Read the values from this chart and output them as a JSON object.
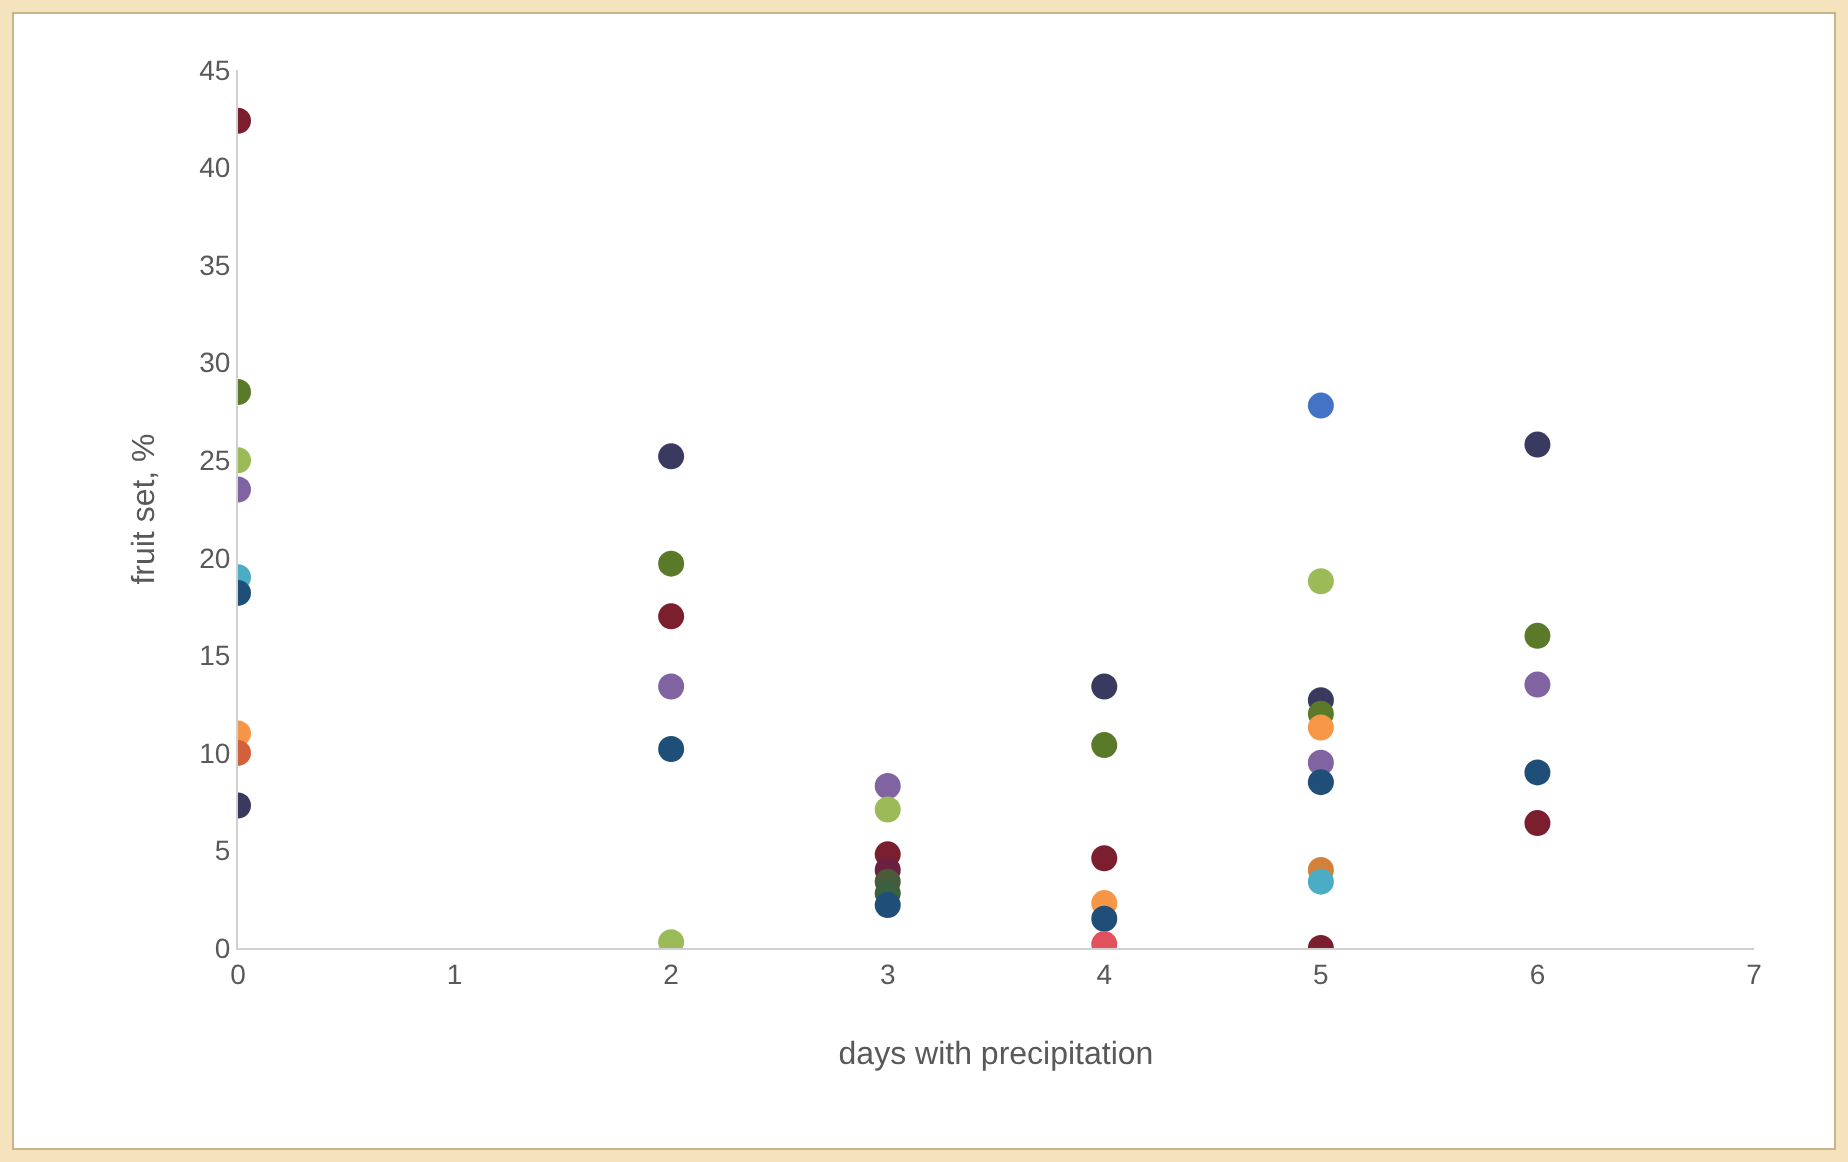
{
  "chart_data": {
    "type": "scatter",
    "xlabel": "days with precipitation",
    "ylabel": "fruit set, %",
    "x": [
      0,
      0,
      0,
      0,
      0,
      0,
      0,
      0,
      0,
      2,
      2,
      2,
      2,
      2,
      2,
      3,
      3,
      3,
      3,
      3,
      3,
      3,
      4,
      4,
      4,
      4,
      4,
      4,
      5,
      5,
      5,
      5,
      5,
      5,
      5,
      5,
      5,
      5,
      6,
      6,
      6,
      6,
      6
    ],
    "values": [
      42.4,
      28.5,
      25,
      23.5,
      19,
      18.2,
      11,
      10,
      7.3,
      25.2,
      19.7,
      17,
      13.4,
      10.2,
      0.3,
      8.3,
      7.1,
      4.8,
      4,
      3.4,
      2.8,
      2.2,
      13.4,
      10.4,
      4.6,
      2.3,
      1.5,
      0.2,
      27.8,
      18.8,
      12.7,
      12,
      11.3,
      9.5,
      8.5,
      4,
      3.4,
      0,
      25.8,
      16,
      13.5,
      9,
      6.4
    ],
    "colors": [
      "#7b1f2e",
      "#5a7a2a",
      "#9bbb59",
      "#8064a2",
      "#4bacc6",
      "#1f4e79",
      "#f79646",
      "#d2603a",
      "#3a3a60",
      "#3a3a60",
      "#5a7a2a",
      "#7b1f2e",
      "#8064a2",
      "#1f4e79",
      "#9bbb59",
      "#8064a2",
      "#9bbb59",
      "#7b1f2e",
      "#6b2040",
      "#4a5a3a",
      "#3a6040",
      "#1f4e79",
      "#3a3a60",
      "#5a7a2a",
      "#7b1f2e",
      "#f79646",
      "#1f4e79",
      "#e0505d",
      "#4472c4",
      "#9bbb59",
      "#3a3a60",
      "#5a7a2a",
      "#f79646",
      "#8064a2",
      "#1f4e79",
      "#d2803a",
      "#4bacc6",
      "#7b1f2e",
      "#3a3a60",
      "#5a7a2a",
      "#8064a2",
      "#1f4e79",
      "#7b1f2e"
    ],
    "xlim": [
      0,
      7
    ],
    "xticks": [
      0,
      1,
      2,
      3,
      4,
      5,
      6,
      7
    ],
    "ylim": [
      0,
      45
    ],
    "yticks": [
      0,
      5,
      10,
      15,
      20,
      25,
      30,
      35,
      40,
      45
    ],
    "grid": false,
    "marker": "circle"
  }
}
